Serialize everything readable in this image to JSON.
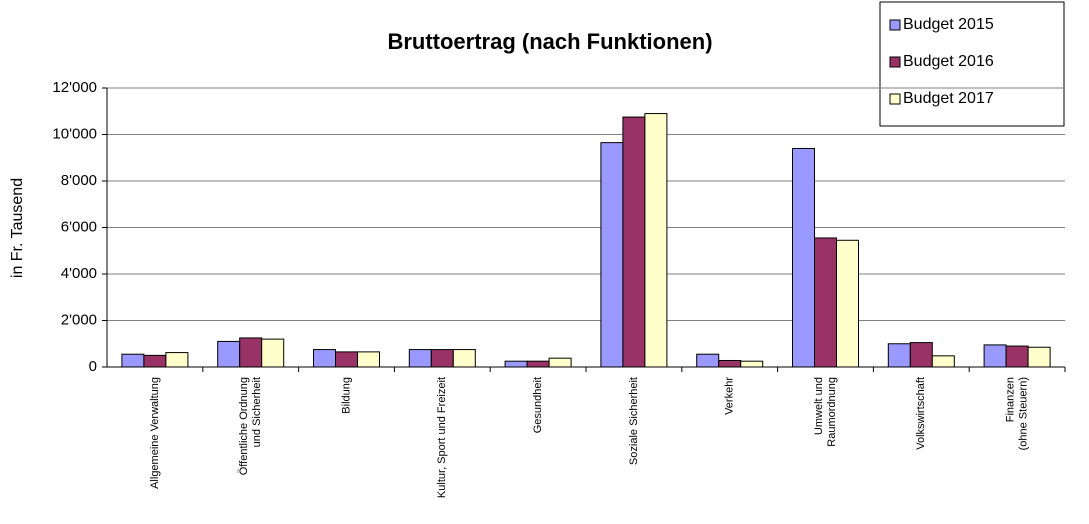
{
  "chart_data": {
    "type": "bar",
    "title": "Bruttoertrag (nach Funktionen)",
    "y_label": "in Fr. Tausend",
    "categories": [
      [
        "Allgemeine Verwaltung"
      ],
      [
        "Öffentliche Ordnung",
        "und Sicherheit"
      ],
      [
        "Bildung"
      ],
      [
        "Kultur, Sport und Freizeit"
      ],
      [
        "Gesundheit"
      ],
      [
        "Soziale Sicherheit"
      ],
      [
        "Verkehr"
      ],
      [
        "Umwelt und",
        "Raumordnung"
      ],
      [
        "Volkswirtschaft"
      ],
      [
        "Finanzen",
        "(ohne Steuern)"
      ]
    ],
    "series": [
      {
        "name": "Budget 2015",
        "color": "#9999ff",
        "values": [
          550,
          1100,
          750,
          750,
          250,
          9650,
          550,
          9400,
          1000,
          950
        ]
      },
      {
        "name": "Budget 2016",
        "color": "#993366",
        "values": [
          500,
          1250,
          650,
          750,
          250,
          10750,
          280,
          5550,
          1050,
          900
        ]
      },
      {
        "name": "Budget 2017",
        "color": "#ffffcc",
        "values": [
          620,
          1200,
          650,
          750,
          380,
          10900,
          250,
          5450,
          480,
          850
        ]
      }
    ],
    "ylim": [
      0,
      12000
    ],
    "yticks": [
      0,
      {
        "value": 2000,
        "label": "2'000"
      },
      {
        "value": 4000,
        "label": "4'000"
      },
      {
        "value": 6000,
        "label": "6'000"
      },
      {
        "value": 8000,
        "label": "8'000"
      },
      {
        "value": 10000,
        "label": "10'000"
      },
      {
        "value": 12000,
        "label": "12'000"
      }
    ],
    "grid": true,
    "legend": "top-right"
  }
}
